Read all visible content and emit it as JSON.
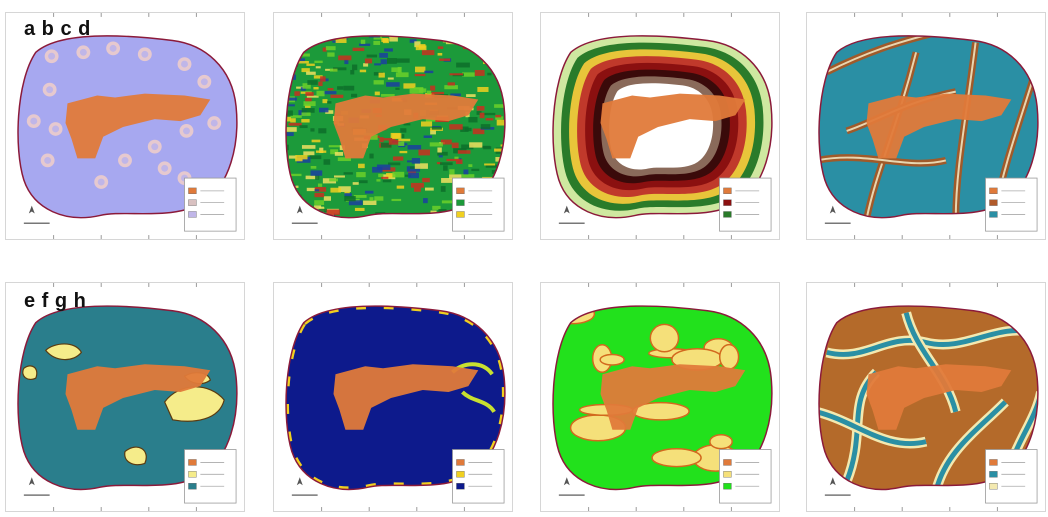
{
  "row_labels": {
    "top": "a b c d",
    "bottom": "e f g h"
  },
  "colors": {
    "study_area": "#e07a3a",
    "boundary": "#8b1a3a",
    "panel_a_bg": "#a7a8f0",
    "panel_b_bg": "#1c9a3a",
    "panel_d_bg": "#2a8fa4",
    "panel_e_bg": "#2a7e8c",
    "panel_f_bg": "#0d1a8c",
    "panel_g_bg": "#22e11c",
    "panel_h_bg": "#b46a2a"
  },
  "panels": [
    {
      "id": "a",
      "style": "wells"
    },
    {
      "id": "b",
      "style": "noise"
    },
    {
      "id": "c",
      "style": "rings"
    },
    {
      "id": "d",
      "style": "streams"
    },
    {
      "id": "e",
      "style": "patches"
    },
    {
      "id": "f",
      "style": "edges"
    },
    {
      "id": "g",
      "style": "contours"
    },
    {
      "id": "h",
      "style": "network"
    }
  ]
}
